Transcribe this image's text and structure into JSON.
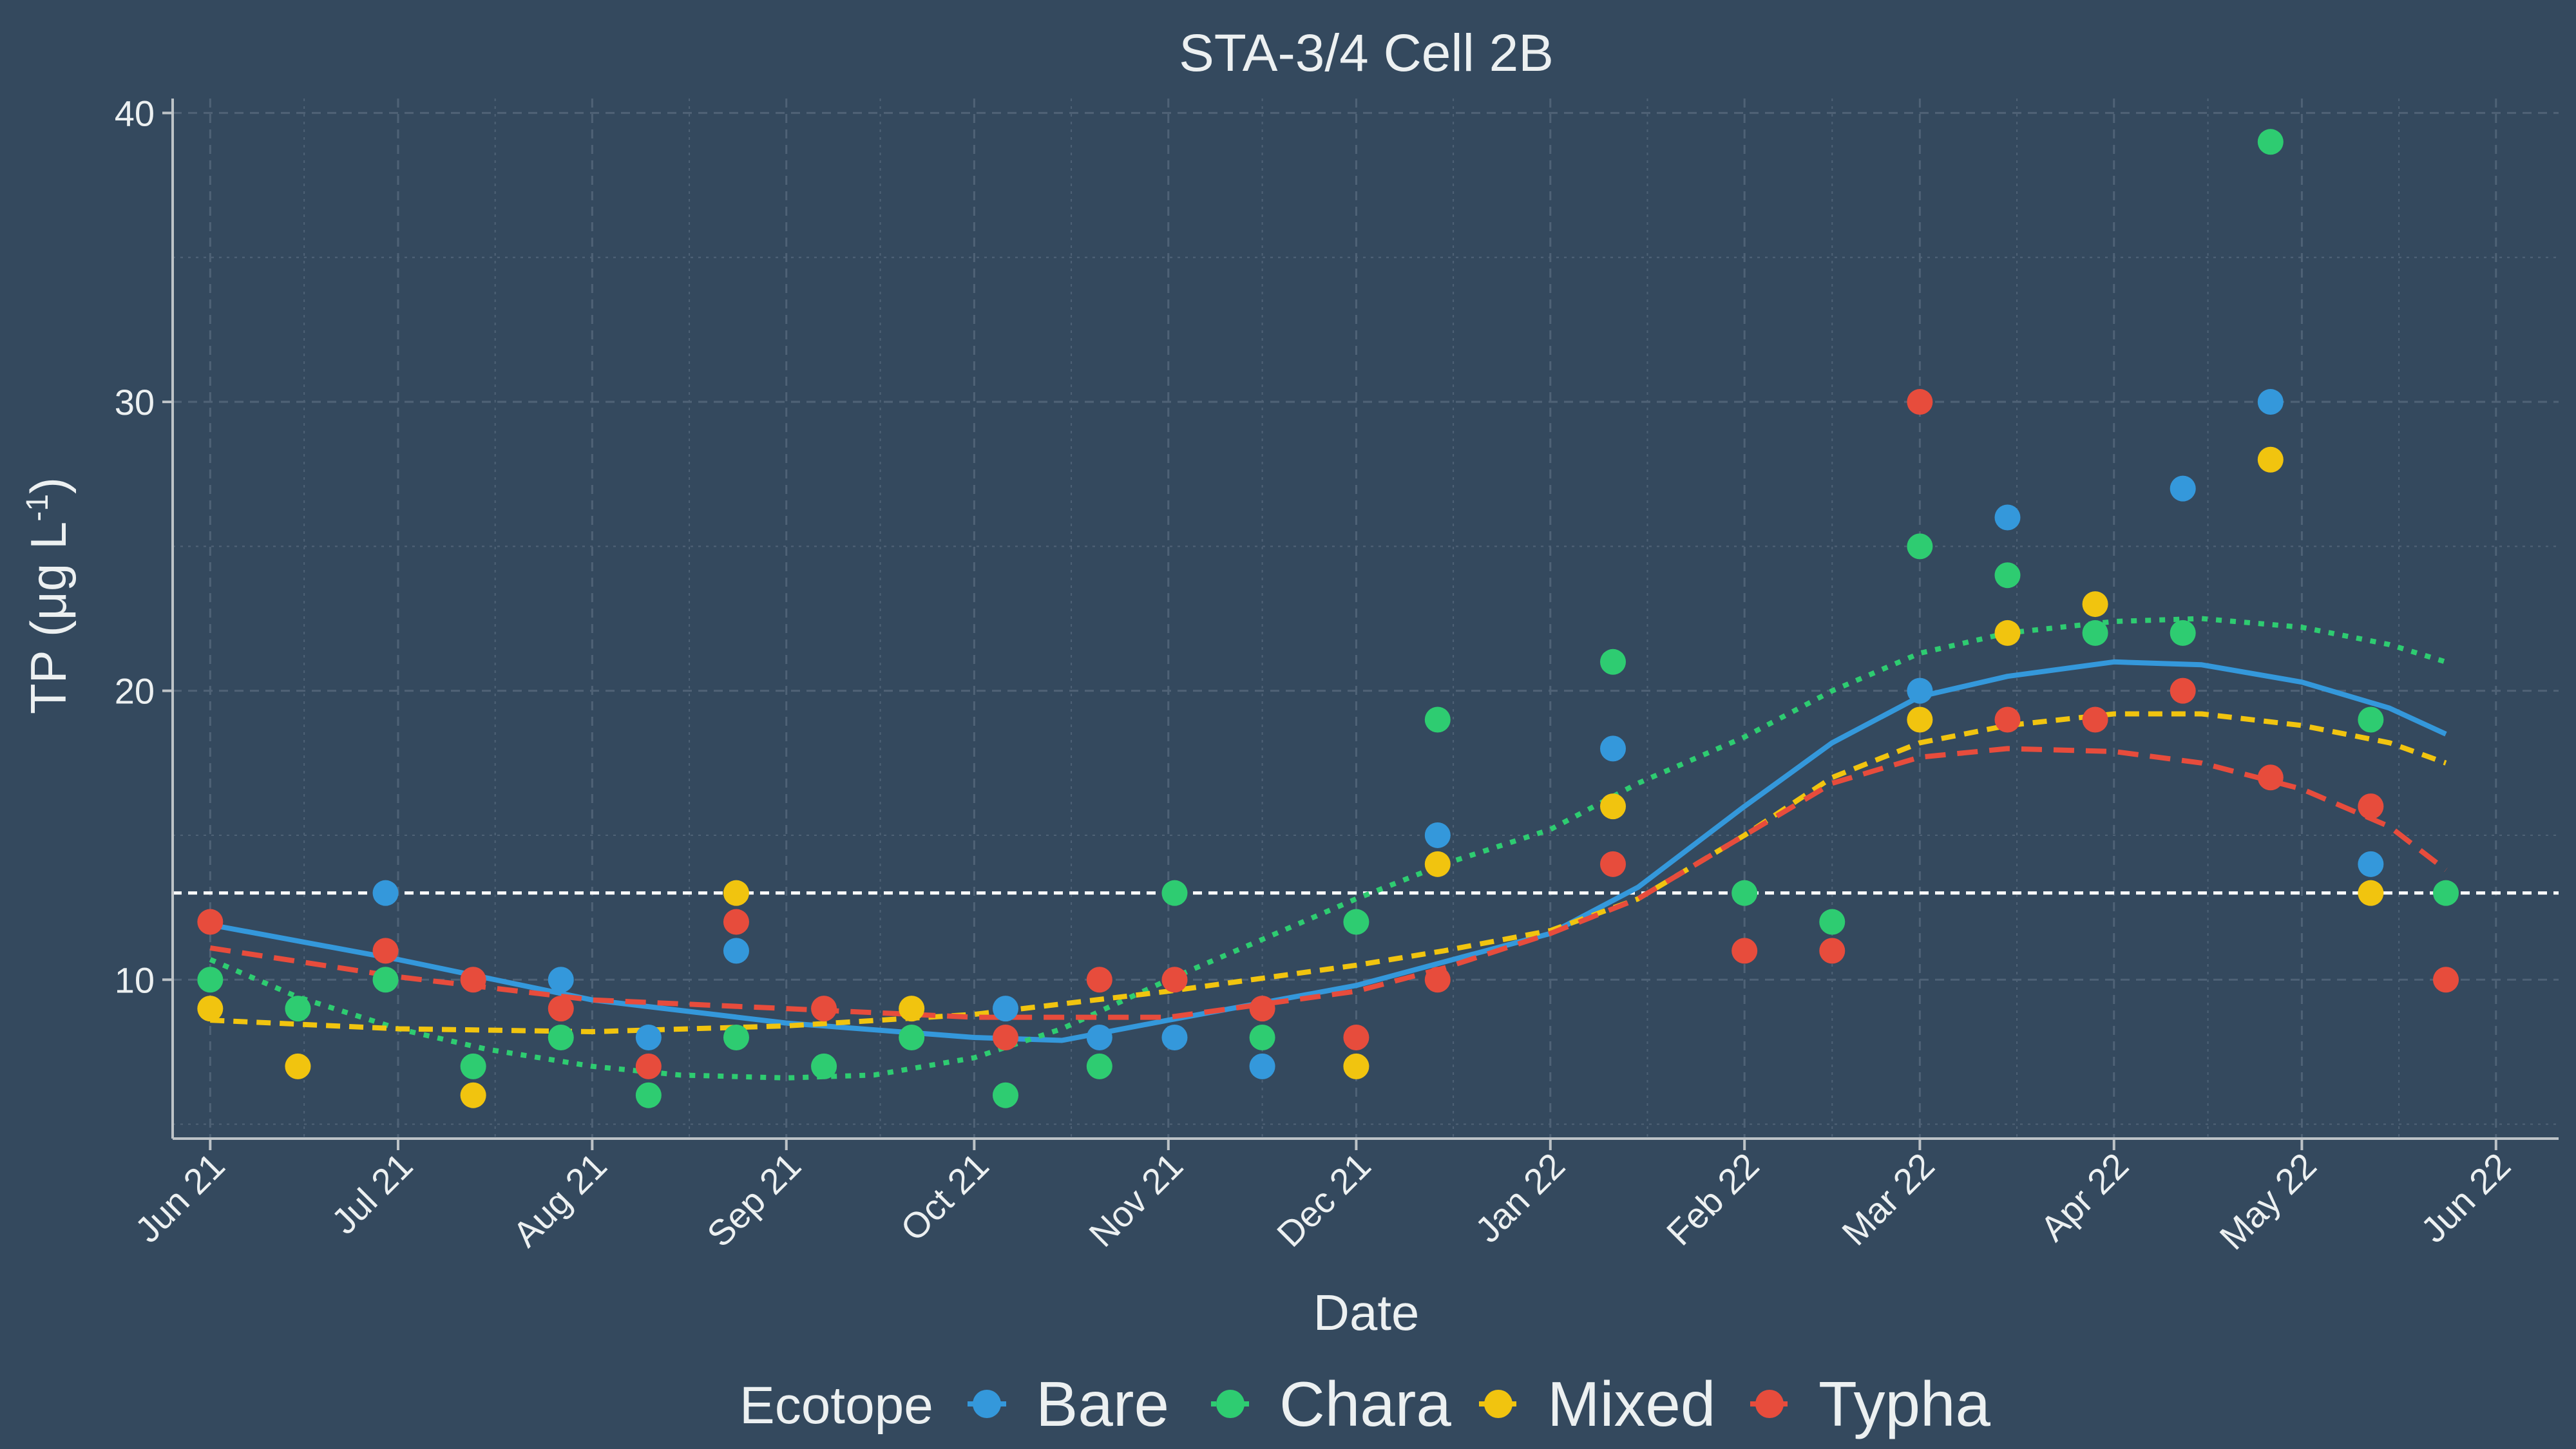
{
  "chart_data": {
    "type": "scatter",
    "title": "STA-3/4 Cell 2B",
    "xlabel": "Date",
    "ylabel_main": "TP (",
    "ylabel_mu": "μ",
    "ylabel_unit": "g L",
    "ylabel_exp": "-1",
    "ylabel_close": ")",
    "xlim": [
      "2021-05-26",
      "2022-06-11"
    ],
    "ylim": [
      4.5,
      40.5
    ],
    "x_ticks": [
      "2021-06-01",
      "2021-07-01",
      "2021-08-01",
      "2021-09-01",
      "2021-10-01",
      "2021-11-01",
      "2021-12-01",
      "2022-01-01",
      "2022-02-01",
      "2022-03-01",
      "2022-04-01",
      "2022-05-01",
      "2022-06-01"
    ],
    "x_tick_labels": [
      "Jun 21",
      "Jul 21",
      "Aug 21",
      "Sep 21",
      "Oct 21",
      "Nov 21",
      "Dec 21",
      "Jan 22",
      "Feb 22",
      "Mar 22",
      "Apr 22",
      "May 22",
      "Jun 22"
    ],
    "y_ticks": [
      10,
      20,
      30,
      40
    ],
    "y_tick_labels": [
      "10",
      "20",
      "30",
      "40"
    ],
    "reference_line": 13,
    "grid": true,
    "legend": {
      "position": "bottom",
      "title": "Ecotope"
    },
    "series": [
      {
        "name": "Bare",
        "color": "#3498db",
        "dash": "solid",
        "points": [
          [
            "2021-06-29",
            13
          ],
          [
            "2021-07-27",
            10
          ],
          [
            "2021-08-10",
            8
          ],
          [
            "2021-08-24",
            11
          ],
          [
            "2021-10-06",
            9
          ],
          [
            "2021-10-21",
            8
          ],
          [
            "2021-11-02",
            8
          ],
          [
            "2021-11-16",
            7
          ],
          [
            "2021-12-14",
            15
          ],
          [
            "2022-01-11",
            18
          ],
          [
            "2022-03-01",
            20
          ],
          [
            "2022-03-15",
            26
          ],
          [
            "2022-04-12",
            27
          ],
          [
            "2022-04-26",
            30
          ],
          [
            "2022-05-12",
            14
          ]
        ],
        "trend": [
          [
            "2021-06-01",
            11.9
          ],
          [
            "2021-07-01",
            10.7
          ],
          [
            "2021-08-01",
            9.3
          ],
          [
            "2021-09-01",
            8.5
          ],
          [
            "2021-10-01",
            8
          ],
          [
            "2021-10-15",
            7.9
          ],
          [
            "2021-11-01",
            8.6
          ],
          [
            "2021-12-01",
            9.8
          ],
          [
            "2022-01-01",
            11.6
          ],
          [
            "2022-01-15",
            13.2
          ],
          [
            "2022-02-01",
            16
          ],
          [
            "2022-02-15",
            18.2
          ],
          [
            "2022-03-01",
            19.8
          ],
          [
            "2022-03-15",
            20.5
          ],
          [
            "2022-04-01",
            21
          ],
          [
            "2022-04-15",
            20.9
          ],
          [
            "2022-05-01",
            20.3
          ],
          [
            "2022-05-15",
            19.4
          ],
          [
            "2022-05-24",
            18.5
          ]
        ]
      },
      {
        "name": "Chara",
        "color": "#2ecc71",
        "dash": "dotted",
        "points": [
          [
            "2021-06-01",
            10
          ],
          [
            "2021-06-15",
            9
          ],
          [
            "2021-06-29",
            10
          ],
          [
            "2021-07-13",
            7
          ],
          [
            "2021-07-27",
            8
          ],
          [
            "2021-08-10",
            6
          ],
          [
            "2021-08-24",
            8
          ],
          [
            "2021-09-07",
            7
          ],
          [
            "2021-09-21",
            8
          ],
          [
            "2021-10-06",
            6
          ],
          [
            "2021-10-21",
            7
          ],
          [
            "2021-11-02",
            13
          ],
          [
            "2021-11-16",
            8
          ],
          [
            "2021-12-01",
            12
          ],
          [
            "2021-12-14",
            19
          ],
          [
            "2022-01-11",
            21
          ],
          [
            "2022-02-01",
            13
          ],
          [
            "2022-02-15",
            12
          ],
          [
            "2022-03-01",
            25
          ],
          [
            "2022-03-15",
            24
          ],
          [
            "2022-03-29",
            22
          ],
          [
            "2022-04-12",
            22
          ],
          [
            "2022-04-26",
            39
          ],
          [
            "2022-05-12",
            19
          ],
          [
            "2022-05-24",
            13
          ]
        ],
        "trend": [
          [
            "2021-06-01",
            10.7
          ],
          [
            "2021-06-15",
            9.4
          ],
          [
            "2021-07-01",
            8.3
          ],
          [
            "2021-07-15",
            7.6
          ],
          [
            "2021-08-01",
            7
          ],
          [
            "2021-08-15",
            6.7
          ],
          [
            "2021-09-01",
            6.6
          ],
          [
            "2021-09-15",
            6.7
          ],
          [
            "2021-10-01",
            7.3
          ],
          [
            "2021-10-15",
            8.3
          ],
          [
            "2021-11-01",
            10
          ],
          [
            "2021-11-15",
            11.3
          ],
          [
            "2021-12-01",
            12.8
          ],
          [
            "2021-12-15",
            14
          ],
          [
            "2022-01-01",
            15.2
          ],
          [
            "2022-01-15",
            16.8
          ],
          [
            "2022-02-01",
            18.4
          ],
          [
            "2022-02-15",
            20
          ],
          [
            "2022-03-01",
            21.3
          ],
          [
            "2022-03-15",
            22
          ],
          [
            "2022-04-01",
            22.4
          ],
          [
            "2022-04-15",
            22.5
          ],
          [
            "2022-05-01",
            22.2
          ],
          [
            "2022-05-15",
            21.6
          ],
          [
            "2022-05-24",
            21
          ]
        ]
      },
      {
        "name": "Mixed",
        "color": "#f1c40f",
        "dash": "dashed",
        "points": [
          [
            "2021-06-01",
            9
          ],
          [
            "2021-06-15",
            7
          ],
          [
            "2021-07-13",
            6
          ],
          [
            "2021-08-24",
            13
          ],
          [
            "2021-09-21",
            9
          ],
          [
            "2021-12-01",
            7
          ],
          [
            "2021-12-14",
            14
          ],
          [
            "2022-01-11",
            16
          ],
          [
            "2022-03-01",
            19
          ],
          [
            "2022-03-15",
            22
          ],
          [
            "2022-03-29",
            23
          ],
          [
            "2022-04-26",
            28
          ],
          [
            "2022-05-12",
            13
          ]
        ],
        "trend": [
          [
            "2021-06-01",
            8.6
          ],
          [
            "2021-07-01",
            8.3
          ],
          [
            "2021-08-01",
            8.2
          ],
          [
            "2021-09-01",
            8.4
          ],
          [
            "2021-10-01",
            8.8
          ],
          [
            "2021-11-01",
            9.6
          ],
          [
            "2021-12-01",
            10.5
          ],
          [
            "2021-12-15",
            11
          ],
          [
            "2022-01-01",
            11.7
          ],
          [
            "2022-01-15",
            12.8
          ],
          [
            "2022-02-01",
            15
          ],
          [
            "2022-02-15",
            17
          ],
          [
            "2022-03-01",
            18.2
          ],
          [
            "2022-03-15",
            18.8
          ],
          [
            "2022-04-01",
            19.2
          ],
          [
            "2022-04-15",
            19.2
          ],
          [
            "2022-05-01",
            18.8
          ],
          [
            "2022-05-15",
            18.2
          ],
          [
            "2022-05-24",
            17.5
          ]
        ]
      },
      {
        "name": "Typha",
        "color": "#e74c3c",
        "dash": "longdash",
        "points": [
          [
            "2021-06-01",
            12
          ],
          [
            "2021-06-29",
            11
          ],
          [
            "2021-07-13",
            10
          ],
          [
            "2021-07-27",
            9
          ],
          [
            "2021-08-10",
            7
          ],
          [
            "2021-08-24",
            12
          ],
          [
            "2021-09-07",
            9
          ],
          [
            "2021-10-06",
            8
          ],
          [
            "2021-10-21",
            10
          ],
          [
            "2021-11-02",
            10
          ],
          [
            "2021-11-16",
            9
          ],
          [
            "2021-12-01",
            8
          ],
          [
            "2021-12-14",
            10
          ],
          [
            "2022-01-11",
            14
          ],
          [
            "2022-02-01",
            11
          ],
          [
            "2022-02-15",
            11
          ],
          [
            "2022-03-01",
            30
          ],
          [
            "2022-03-15",
            19
          ],
          [
            "2022-03-29",
            19
          ],
          [
            "2022-04-12",
            20
          ],
          [
            "2022-04-26",
            17
          ],
          [
            "2022-05-12",
            16
          ],
          [
            "2022-05-24",
            10
          ]
        ],
        "trend": [
          [
            "2021-06-01",
            11.1
          ],
          [
            "2021-07-01",
            10.1
          ],
          [
            "2021-08-01",
            9.3
          ],
          [
            "2021-09-01",
            9
          ],
          [
            "2021-10-01",
            8.7
          ],
          [
            "2021-11-01",
            8.7
          ],
          [
            "2021-12-01",
            9.6
          ],
          [
            "2021-12-15",
            10.4
          ],
          [
            "2022-01-01",
            11.6
          ],
          [
            "2022-01-15",
            12.8
          ],
          [
            "2022-02-01",
            15
          ],
          [
            "2022-02-15",
            16.8
          ],
          [
            "2022-03-01",
            17.7
          ],
          [
            "2022-03-15",
            18
          ],
          [
            "2022-04-01",
            17.9
          ],
          [
            "2022-04-15",
            17.5
          ],
          [
            "2022-05-01",
            16.6
          ],
          [
            "2022-05-15",
            15.3
          ],
          [
            "2022-05-24",
            13.8
          ]
        ]
      }
    ]
  }
}
